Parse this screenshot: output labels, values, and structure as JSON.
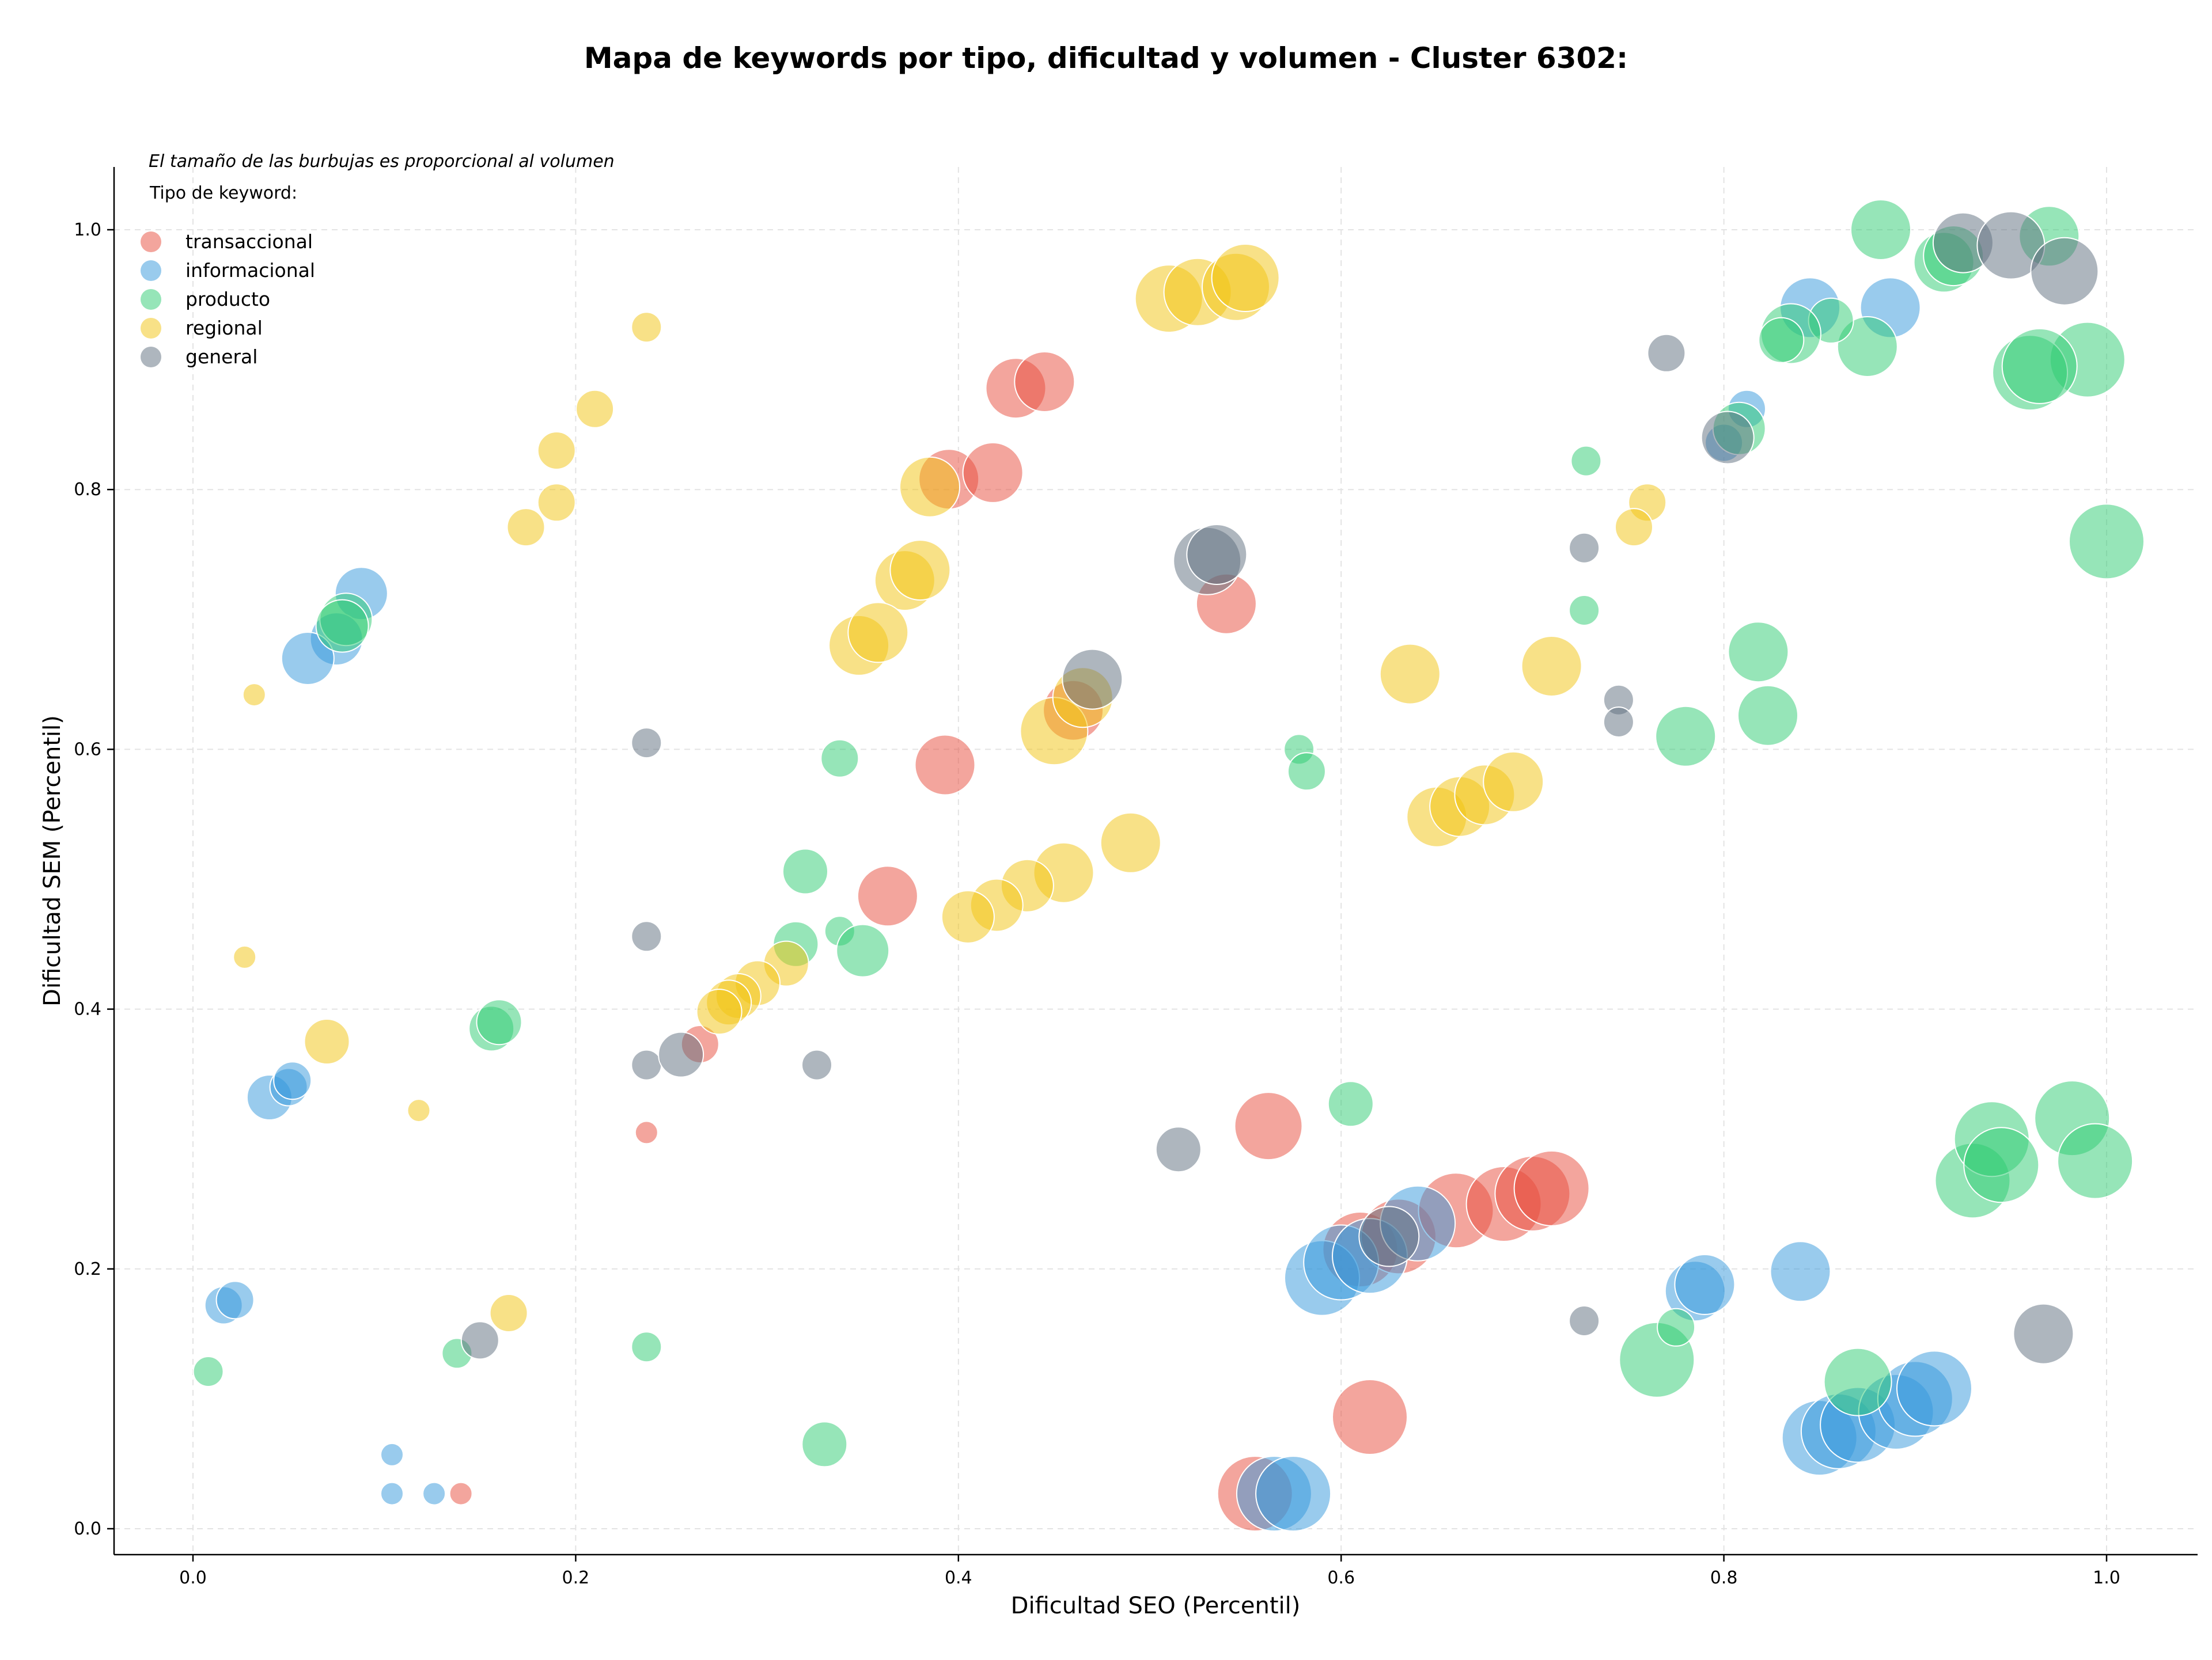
{
  "chart_data": {
    "type": "scatter",
    "title": "Mapa de keywords por tipo, dificultad y volumen - Cluster 6302:",
    "xlabel": "Dificultad SEO (Percentil)",
    "ylabel": "Dificultad SEM (Percentil)",
    "xlim": [
      -0.04,
      1.05
    ],
    "ylim": [
      -0.02,
      1.05
    ],
    "x_ticks": [
      0.0,
      0.2,
      0.4,
      0.6,
      0.8,
      1.0
    ],
    "y_ticks": [
      0.0,
      0.2,
      0.4,
      0.6,
      0.8,
      1.0
    ],
    "x_tick_labels": [
      "0.0",
      "0.2",
      "0.4",
      "0.6",
      "0.8",
      "1.0"
    ],
    "y_tick_labels": [
      "0.0",
      "0.2",
      "0.4",
      "0.6",
      "0.8",
      "1.0"
    ],
    "grid": true,
    "note": "El tamaño de las burbujas es proporcional al volumen",
    "legend_title": "Tipo de keyword:",
    "legend_position": "top-left",
    "series": [
      {
        "name": "transaccional",
        "color": "#e74c3c",
        "points": [
          [
            0.43,
            0.878,
            4
          ],
          [
            0.445,
            0.883,
            4
          ],
          [
            0.395,
            0.808,
            4
          ],
          [
            0.418,
            0.813,
            4
          ],
          [
            0.54,
            0.712,
            4
          ],
          [
            0.393,
            0.588,
            4
          ],
          [
            0.46,
            0.63,
            4
          ],
          [
            0.363,
            0.487,
            4
          ],
          [
            0.265,
            0.373,
            2.5
          ],
          [
            0.237,
            0.305,
            1.5
          ],
          [
            0.14,
            0.027,
            1.5
          ],
          [
            0.562,
            0.31,
            4.5
          ],
          [
            0.615,
            0.086,
            5
          ],
          [
            0.555,
            0.027,
            5
          ],
          [
            0.61,
            0.215,
            5
          ],
          [
            0.63,
            0.225,
            5
          ],
          [
            0.66,
            0.245,
            5
          ],
          [
            0.685,
            0.25,
            5
          ],
          [
            0.7,
            0.258,
            5
          ],
          [
            0.71,
            0.262,
            5
          ]
        ]
      },
      {
        "name": "informacional",
        "color": "#3498db",
        "points": [
          [
            0.088,
            0.72,
            3.5
          ],
          [
            0.075,
            0.685,
            3.5
          ],
          [
            0.06,
            0.67,
            3.5
          ],
          [
            0.04,
            0.332,
            3
          ],
          [
            0.05,
            0.34,
            2.5
          ],
          [
            0.052,
            0.345,
            2.5
          ],
          [
            0.016,
            0.172,
            2.5
          ],
          [
            0.022,
            0.176,
            2.5
          ],
          [
            0.104,
            0.057,
            1.5
          ],
          [
            0.104,
            0.027,
            1.5
          ],
          [
            0.126,
            0.027,
            1.5
          ],
          [
            0.59,
            0.193,
            5
          ],
          [
            0.6,
            0.205,
            5
          ],
          [
            0.615,
            0.21,
            5
          ],
          [
            0.64,
            0.235,
            5
          ],
          [
            0.565,
            0.027,
            5
          ],
          [
            0.575,
            0.027,
            5
          ],
          [
            0.785,
            0.183,
            4
          ],
          [
            0.79,
            0.188,
            4
          ],
          [
            0.84,
            0.198,
            4
          ],
          [
            0.85,
            0.07,
            5
          ],
          [
            0.86,
            0.075,
            5
          ],
          [
            0.87,
            0.08,
            5
          ],
          [
            0.89,
            0.09,
            5
          ],
          [
            0.9,
            0.1,
            5
          ],
          [
            0.91,
            0.108,
            5
          ],
          [
            0.845,
            0.94,
            4
          ],
          [
            0.887,
            0.94,
            4
          ],
          [
            0.812,
            0.862,
            2.5
          ],
          [
            0.8,
            0.836,
            2.5
          ]
        ]
      },
      {
        "name": "producto",
        "color": "#2ecc71",
        "points": [
          [
            0.08,
            0.7,
            3.5
          ],
          [
            0.078,
            0.695,
            3.5
          ],
          [
            0.338,
            0.593,
            2.5
          ],
          [
            0.32,
            0.506,
            3
          ],
          [
            0.315,
            0.45,
            3
          ],
          [
            0.338,
            0.46,
            2
          ],
          [
            0.35,
            0.445,
            3.5
          ],
          [
            0.156,
            0.385,
            3
          ],
          [
            0.16,
            0.39,
            3
          ],
          [
            0.138,
            0.135,
            2
          ],
          [
            0.008,
            0.121,
            2
          ],
          [
            0.237,
            0.14,
            2
          ],
          [
            0.33,
            0.065,
            3
          ],
          [
            0.578,
            0.6,
            2
          ],
          [
            0.582,
            0.583,
            2.5
          ],
          [
            0.605,
            0.327,
            3
          ],
          [
            0.727,
            0.707,
            2
          ],
          [
            0.728,
            0.822,
            2
          ],
          [
            0.78,
            0.61,
            4
          ],
          [
            0.818,
            0.675,
            4
          ],
          [
            0.823,
            0.626,
            4
          ],
          [
            0.765,
            0.13,
            5
          ],
          [
            0.775,
            0.155,
            2.5
          ],
          [
            0.87,
            0.113,
            4.5
          ],
          [
            0.93,
            0.268,
            5
          ],
          [
            0.94,
            0.3,
            5
          ],
          [
            0.945,
            0.28,
            5
          ],
          [
            0.982,
            0.316,
            5
          ],
          [
            0.994,
            0.283,
            5
          ],
          [
            0.99,
            0.9,
            5
          ],
          [
            1.0,
            0.76,
            5
          ],
          [
            0.96,
            0.89,
            5
          ],
          [
            0.965,
            0.895,
            5
          ],
          [
            0.97,
            0.995,
            4
          ],
          [
            0.915,
            0.975,
            4
          ],
          [
            0.92,
            0.98,
            4
          ],
          [
            0.882,
            1.0,
            4
          ],
          [
            0.875,
            0.91,
            4
          ],
          [
            0.856,
            0.93,
            3
          ],
          [
            0.835,
            0.92,
            4
          ],
          [
            0.83,
            0.915,
            3
          ],
          [
            0.808,
            0.847,
            3.5
          ]
        ]
      },
      {
        "name": "regional",
        "color": "#f1c40f",
        "points": [
          [
            0.032,
            0.642,
            1.5
          ],
          [
            0.027,
            0.44,
            1.5
          ],
          [
            0.07,
            0.375,
            3
          ],
          [
            0.118,
            0.322,
            1.5
          ],
          [
            0.165,
            0.166,
            2.5
          ],
          [
            0.237,
            0.925,
            2
          ],
          [
            0.19,
            0.83,
            2.5
          ],
          [
            0.21,
            0.862,
            2.5
          ],
          [
            0.19,
            0.79,
            2.5
          ],
          [
            0.174,
            0.771,
            2.5
          ],
          [
            0.385,
            0.802,
            4
          ],
          [
            0.372,
            0.73,
            4
          ],
          [
            0.38,
            0.738,
            4
          ],
          [
            0.348,
            0.68,
            4
          ],
          [
            0.358,
            0.69,
            4
          ],
          [
            0.45,
            0.614,
            4.5
          ],
          [
            0.465,
            0.64,
            4
          ],
          [
            0.49,
            0.528,
            4
          ],
          [
            0.455,
            0.505,
            4
          ],
          [
            0.436,
            0.495,
            3.5
          ],
          [
            0.42,
            0.48,
            3.5
          ],
          [
            0.405,
            0.471,
            3.5
          ],
          [
            0.31,
            0.435,
            3
          ],
          [
            0.295,
            0.42,
            3
          ],
          [
            0.285,
            0.41,
            3
          ],
          [
            0.28,
            0.405,
            3
          ],
          [
            0.275,
            0.398,
            3
          ],
          [
            0.51,
            0.947,
            4.5
          ],
          [
            0.525,
            0.952,
            4.5
          ],
          [
            0.545,
            0.956,
            4.5
          ],
          [
            0.55,
            0.963,
            4.5
          ],
          [
            0.636,
            0.658,
            4
          ],
          [
            0.71,
            0.664,
            4
          ],
          [
            0.65,
            0.548,
            4
          ],
          [
            0.662,
            0.556,
            4
          ],
          [
            0.675,
            0.565,
            4
          ],
          [
            0.69,
            0.575,
            4
          ],
          [
            0.76,
            0.79,
            2.5
          ],
          [
            0.753,
            0.771,
            2.5
          ]
        ]
      },
      {
        "name": "general",
        "color": "#5d6d7e",
        "points": [
          [
            0.237,
            0.605,
            2
          ],
          [
            0.237,
            0.456,
            2
          ],
          [
            0.237,
            0.357,
            2
          ],
          [
            0.255,
            0.365,
            3
          ],
          [
            0.326,
            0.357,
            2
          ],
          [
            0.15,
            0.145,
            2.5
          ],
          [
            0.515,
            0.292,
            3
          ],
          [
            0.53,
            0.745,
            4.5
          ],
          [
            0.535,
            0.75,
            4
          ],
          [
            0.47,
            0.654,
            4
          ],
          [
            0.727,
            0.755,
            2
          ],
          [
            0.727,
            0.16,
            2
          ],
          [
            0.745,
            0.638,
            2
          ],
          [
            0.745,
            0.621,
            2
          ],
          [
            0.77,
            0.905,
            2.5
          ],
          [
            0.802,
            0.84,
            3.5
          ],
          [
            0.625,
            0.225,
            4
          ],
          [
            0.925,
            0.99,
            4
          ],
          [
            0.95,
            0.988,
            4.5
          ],
          [
            0.978,
            0.968,
            4.5
          ],
          [
            0.967,
            0.15,
            4
          ]
        ]
      }
    ]
  }
}
